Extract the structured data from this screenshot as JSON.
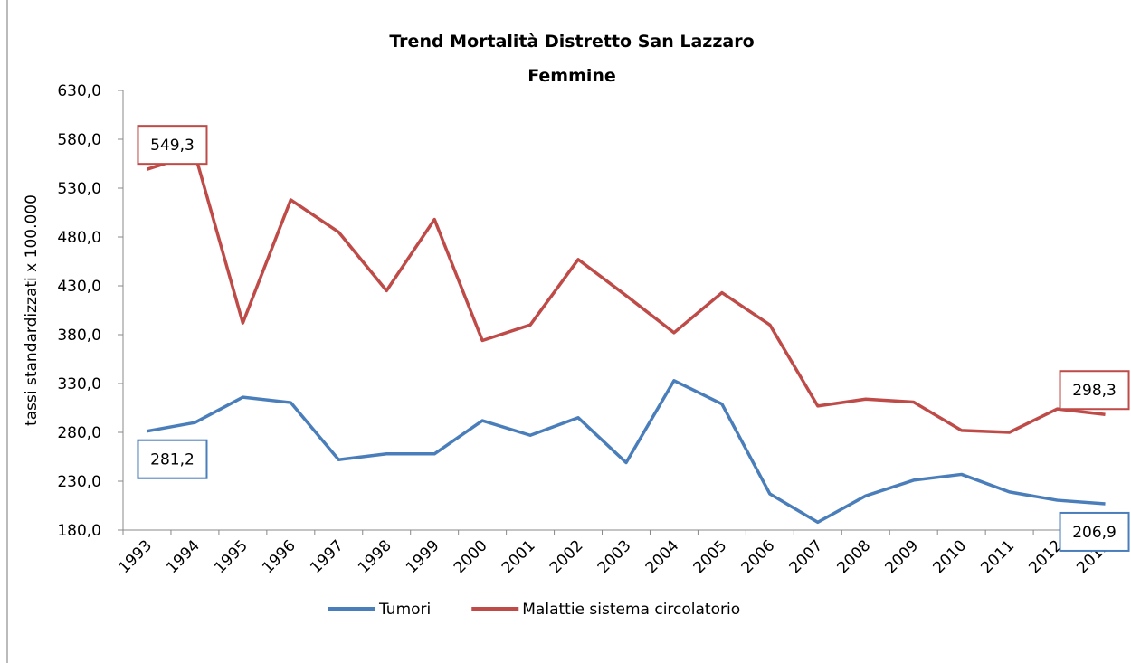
{
  "chart_data": {
    "type": "line",
    "title": "Trend Mortalità Distretto San Lazzaro",
    "subtitle": "Femmine",
    "y_label": "tassi standardizzati x 100.000",
    "categories": [
      "1993",
      "1994",
      "1995",
      "1996",
      "1997",
      "1998",
      "1999",
      "2000",
      "2001",
      "2002",
      "2003",
      "2004",
      "2005",
      "2006",
      "2007",
      "2008",
      "2009",
      "2010",
      "2011",
      "2012",
      "2013"
    ],
    "series": [
      {
        "name": "Tumori",
        "color": "#4a7ebb",
        "values": [
          281.2,
          290,
          316,
          310.5,
          252,
          258,
          258,
          292,
          277,
          295,
          249,
          333,
          309,
          217,
          188,
          215,
          231,
          237,
          219,
          210.5,
          206.9
        ],
        "value_labels": [
          "281,2",
          null,
          null,
          null,
          null,
          null,
          null,
          null,
          null,
          null,
          null,
          null,
          null,
          null,
          null,
          null,
          null,
          null,
          null,
          null,
          "206,9"
        ]
      },
      {
        "name": "Malattie sistema circolatorio",
        "color": "#be4b48",
        "values": [
          549.3,
          565,
          392,
          518,
          485,
          425,
          498,
          374,
          390,
          457,
          420,
          382,
          423,
          390,
          307,
          314,
          311,
          282,
          280,
          304,
          298.3
        ],
        "value_labels": [
          "549,3",
          null,
          null,
          null,
          null,
          null,
          null,
          null,
          null,
          null,
          null,
          null,
          null,
          null,
          null,
          null,
          null,
          null,
          null,
          null,
          "298,3"
        ]
      }
    ],
    "ylim": [
      180,
      630
    ],
    "yticks": [
      {
        "value": 180,
        "label": "180,0"
      },
      {
        "value": 230,
        "label": "230,0"
      },
      {
        "value": 280,
        "label": "280,0"
      },
      {
        "value": 330,
        "label": "330,0"
      },
      {
        "value": 380,
        "label": "380,0"
      },
      {
        "value": 430,
        "label": "430,0"
      },
      {
        "value": 480,
        "label": "480,0"
      },
      {
        "value": 530,
        "label": "530,0"
      },
      {
        "value": 580,
        "label": "580,0"
      },
      {
        "value": 630,
        "label": "630,0"
      }
    ],
    "legend": "bottom"
  }
}
